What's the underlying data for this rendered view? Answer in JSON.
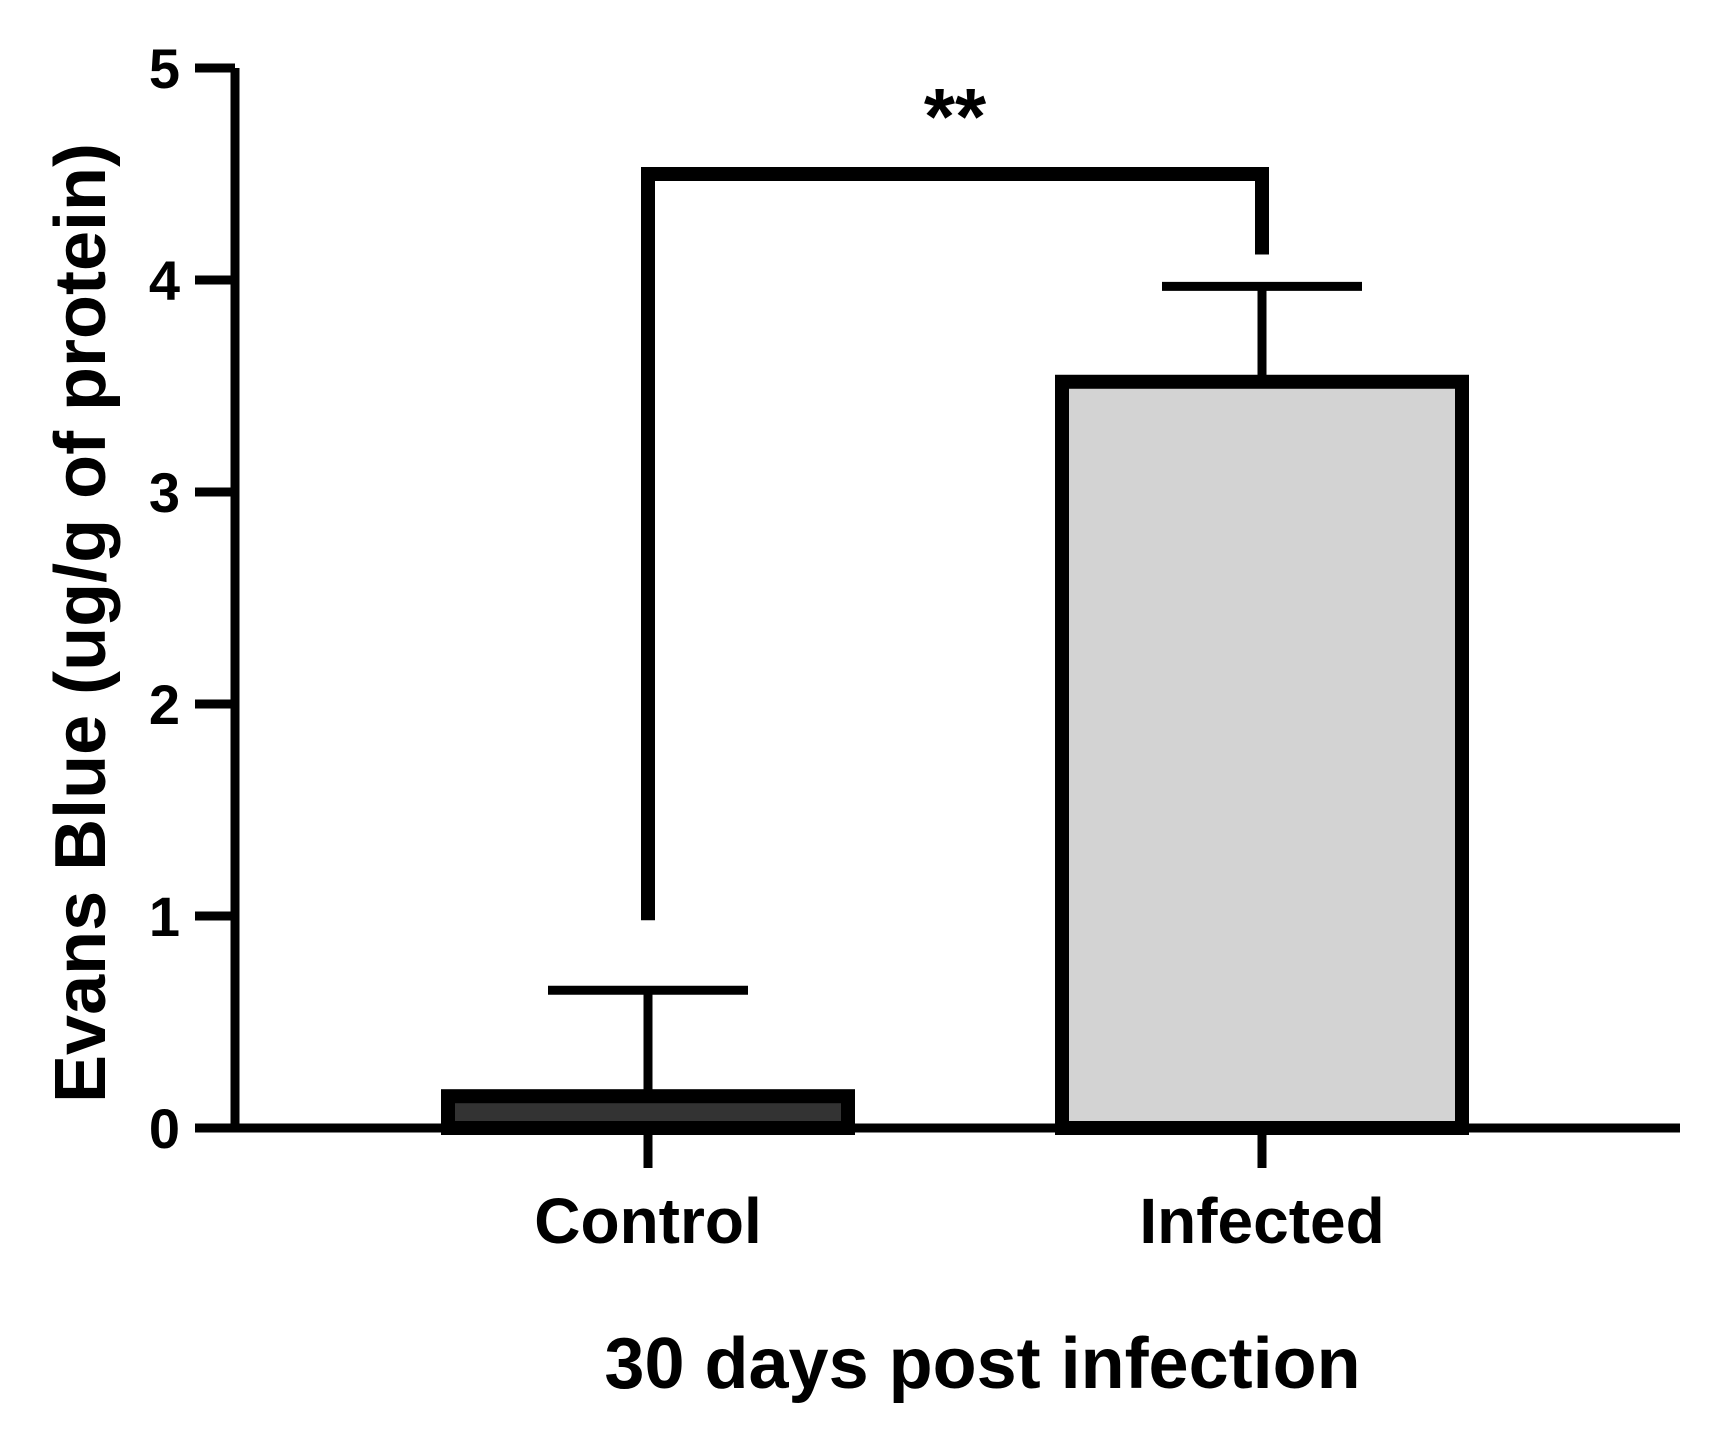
{
  "chart_data": {
    "type": "bar",
    "title": "",
    "xlabel": "30 days post infection",
    "ylabel": "Evans Blue (ug/g of protein)",
    "categories": [
      "Control",
      "Infected"
    ],
    "values": [
      0.15,
      3.52
    ],
    "error_upper": [
      0.65,
      3.97
    ],
    "ylim": [
      0,
      5
    ],
    "yticks": [
      "0",
      "1",
      "2",
      "3",
      "4",
      "5"
    ],
    "grid": false,
    "legend": "none",
    "bar_colors": [
      "#333333",
      "#d3d3d3"
    ],
    "outline_color": "#000000",
    "significance": {
      "label": "**",
      "from": "Control",
      "to": "Infected",
      "y": 4.5,
      "left_leg_bottom": 0.98,
      "right_leg_bottom": 4.12
    }
  }
}
